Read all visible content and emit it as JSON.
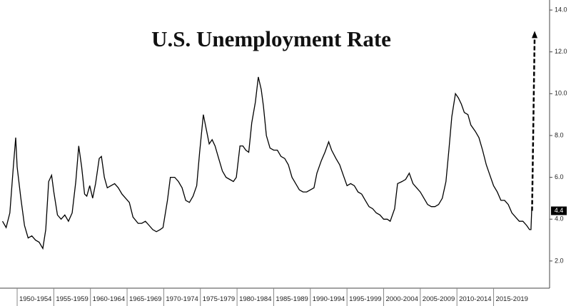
{
  "chart_data": {
    "type": "line",
    "title": "U.S. Unemployment Rate",
    "x": [
      1948.0,
      1948.5,
      1949.0,
      1949.5,
      1949.8,
      1950.0,
      1950.5,
      1951.0,
      1951.5,
      1952.0,
      1952.5,
      1953.0,
      1953.5,
      1953.9,
      1954.3,
      1954.7,
      1955.0,
      1955.5,
      1956.0,
      1956.5,
      1957.0,
      1957.5,
      1958.0,
      1958.4,
      1958.8,
      1959.2,
      1959.5,
      1959.9,
      1960.3,
      1960.7,
      1961.2,
      1961.5,
      1961.9,
      1962.3,
      1962.8,
      1963.3,
      1963.8,
      1964.3,
      1964.8,
      1965.3,
      1965.8,
      1966.5,
      1967.0,
      1967.5,
      1968.0,
      1968.5,
      1969.0,
      1969.5,
      1969.9,
      1970.5,
      1970.9,
      1971.5,
      1972.0,
      1972.5,
      1973.0,
      1973.5,
      1974.0,
      1974.5,
      1974.9,
      1975.4,
      1975.8,
      1976.2,
      1976.6,
      1977.0,
      1977.5,
      1978.0,
      1978.5,
      1979.0,
      1979.5,
      1979.9,
      1980.4,
      1980.8,
      1981.2,
      1981.6,
      1982.0,
      1982.5,
      1982.9,
      1983.3,
      1983.6,
      1984.0,
      1984.5,
      1985.0,
      1985.5,
      1986.0,
      1986.5,
      1987.0,
      1987.5,
      1988.0,
      1988.5,
      1989.0,
      1989.5,
      1990.0,
      1990.5,
      1990.9,
      1991.5,
      1992.0,
      1992.5,
      1992.9,
      1993.5,
      1994.0,
      1994.5,
      1995.0,
      1995.5,
      1996.0,
      1996.5,
      1997.0,
      1997.5,
      1998.0,
      1998.5,
      1999.0,
      1999.5,
      2000.0,
      2000.5,
      2000.9,
      2001.5,
      2001.9,
      2002.5,
      2003.0,
      2003.5,
      2004.0,
      2004.5,
      2005.0,
      2005.5,
      2006.0,
      2006.5,
      2007.0,
      2007.5,
      2008.0,
      2008.5,
      2008.9,
      2009.3,
      2009.8,
      2010.2,
      2010.6,
      2011.0,
      2011.5,
      2011.9,
      2012.5,
      2013.0,
      2013.5,
      2014.0,
      2014.5,
      2015.0,
      2015.5,
      2016.0,
      2016.5,
      2017.0,
      2017.5,
      2018.0,
      2018.5,
      2019.0,
      2019.5,
      2019.9,
      2020.1,
      2020.2
    ],
    "values": [
      3.9,
      3.6,
      4.3,
      6.6,
      7.9,
      6.5,
      5.0,
      3.7,
      3.1,
      3.2,
      3.0,
      2.9,
      2.6,
      3.5,
      5.8,
      6.1,
      5.3,
      4.2,
      4.0,
      4.2,
      3.9,
      4.3,
      5.8,
      7.5,
      6.5,
      5.2,
      5.1,
      5.6,
      5.0,
      5.7,
      6.9,
      7.0,
      6.0,
      5.5,
      5.6,
      5.7,
      5.5,
      5.2,
      5.0,
      4.8,
      4.1,
      3.8,
      3.8,
      3.9,
      3.7,
      3.5,
      3.4,
      3.5,
      3.6,
      4.9,
      6.0,
      6.0,
      5.8,
      5.5,
      4.9,
      4.8,
      5.1,
      5.6,
      7.2,
      9.0,
      8.3,
      7.6,
      7.8,
      7.5,
      6.9,
      6.3,
      6.0,
      5.9,
      5.8,
      6.0,
      7.5,
      7.5,
      7.3,
      7.2,
      8.6,
      9.6,
      10.8,
      10.2,
      9.4,
      8.0,
      7.4,
      7.3,
      7.3,
      7.0,
      6.9,
      6.6,
      6.0,
      5.7,
      5.4,
      5.3,
      5.3,
      5.4,
      5.5,
      6.2,
      6.8,
      7.2,
      7.7,
      7.3,
      6.9,
      6.6,
      6.1,
      5.6,
      5.7,
      5.6,
      5.3,
      5.2,
      4.9,
      4.6,
      4.5,
      4.3,
      4.2,
      4.0,
      4.0,
      3.9,
      4.5,
      5.7,
      5.8,
      5.9,
      6.2,
      5.7,
      5.5,
      5.3,
      5.0,
      4.7,
      4.6,
      4.6,
      4.7,
      5.0,
      5.8,
      7.3,
      8.9,
      10.0,
      9.8,
      9.5,
      9.1,
      9.0,
      8.5,
      8.2,
      7.9,
      7.3,
      6.6,
      6.1,
      5.6,
      5.3,
      4.9,
      4.9,
      4.7,
      4.3,
      4.1,
      3.9,
      3.9,
      3.7,
      3.5,
      3.5,
      4.4
    ],
    "color": "#000000",
    "projection": {
      "x": [
        2020.25,
        2020.6
      ],
      "values": [
        4.4,
        13.0
      ]
    },
    "last_value": 4.4,
    "xlim": [
      1947.66,
      2022.64
    ],
    "xticks": [
      {
        "value": 1952.5,
        "label": "1950-1954"
      },
      {
        "value": 1957.5,
        "label": "1955-1959"
      },
      {
        "value": 1962.5,
        "label": "1960-1964"
      },
      {
        "value": 1967.5,
        "label": "1965-1969"
      },
      {
        "value": 1972.5,
        "label": "1970-1974"
      },
      {
        "value": 1977.5,
        "label": "1975-1979"
      },
      {
        "value": 1982.5,
        "label": "1980-1984"
      },
      {
        "value": 1987.5,
        "label": "1985-1989"
      },
      {
        "value": 1992.5,
        "label": "1990-1994"
      },
      {
        "value": 1997.5,
        "label": "1995-1999"
      },
      {
        "value": 2002.5,
        "label": "2000-2004"
      },
      {
        "value": 2007.5,
        "label": "2005-2009"
      },
      {
        "value": 2012.5,
        "label": "2010-2014"
      },
      {
        "value": 2017.5,
        "label": "2015-2019"
      }
    ],
    "ylim": [
      0.7,
      14.48
    ],
    "yticks": [
      {
        "value": 2,
        "label": "2.0"
      },
      {
        "value": 4,
        "label": "4.0"
      },
      {
        "value": 6,
        "label": "6.0"
      },
      {
        "value": 8,
        "label": "8.0"
      },
      {
        "value": 10,
        "label": "10.0"
      },
      {
        "value": 12,
        "label": "12.0"
      },
      {
        "value": 14,
        "label": "14.0"
      }
    ]
  }
}
